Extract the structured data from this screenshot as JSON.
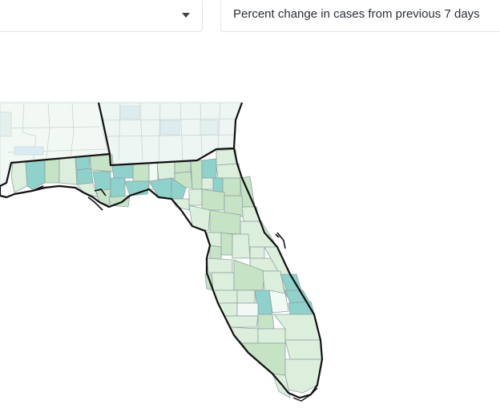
{
  "controls": {
    "left_select": {
      "value": "",
      "icon": "caret-down-icon"
    },
    "metric_select": {
      "value": "Percent change in cases from previous 7 days"
    }
  },
  "map": {
    "region": "Florida",
    "metric": "Percent change in cases from previous 7 days",
    "colors": {
      "state_outline": "#111111",
      "county_border": "#8fa3a3",
      "outside_county_border": "#c9d4d4",
      "fill_very_light": "#f2f8f4",
      "fill_light": "#dcefdc",
      "fill_medium": "#c6e3c6",
      "fill_teal": "#8fd1cb",
      "fill_blue_light": "#d8ecf2",
      "fill_white": "#ffffff"
    }
  }
}
